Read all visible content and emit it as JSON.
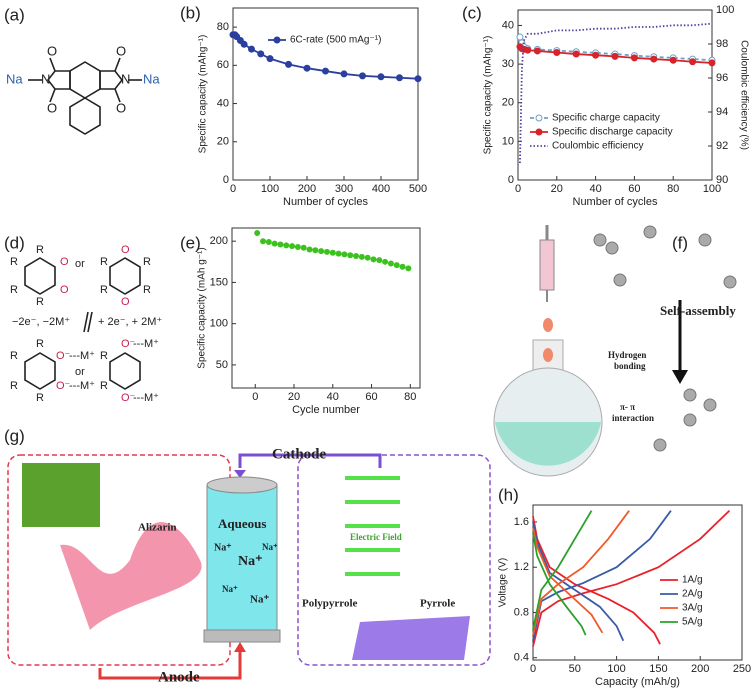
{
  "panels": [
    "(a)",
    "(b)",
    "(c)",
    "(d)",
    "(e)",
    "(f)",
    "(g)",
    "(h)"
  ],
  "panel_a": {
    "oxygen": "O",
    "nitrogen": "N",
    "sodium": "Na"
  },
  "panel_d": {
    "r": "R",
    "or": "or",
    "forward": "−2e⁻, −2M⁺",
    "backward": "+ 2e⁻, + 2M⁺",
    "o_minus": "O⁻",
    "m_plus": "---M⁺",
    "oxygen": "O"
  },
  "panel_f": {
    "arrow_label": "Self-assembly",
    "hydrogen_1": "Hydrogen",
    "hydrogen_2": "bonding",
    "pi_1": "π- π",
    "pi_2": "interaction"
  },
  "panel_g": {
    "cathode": "Cathode",
    "anode": "Anode",
    "alizarin": "Alizarin",
    "aqueous": "Aqueous",
    "na": "Na⁺",
    "electric_field": "Electric Field",
    "polypyrrole": "Polypyrrole",
    "pyrrole": "Pyrrole"
  },
  "chart_data": [
    {
      "type": "line",
      "xlabel": "Number of cycles",
      "ylabel": "Specific capacity (mAhg⁻¹)",
      "xlim": [
        0,
        500
      ],
      "xticks": [
        0,
        100,
        200,
        300,
        400,
        500
      ],
      "ylim": [
        0,
        90
      ],
      "yticks": [
        0,
        20,
        40,
        60,
        80
      ],
      "series": [
        {
          "name": "6C-rate (500 mAg⁻¹)",
          "color": "#2b3f9e",
          "linestyle": "solid",
          "marker": "circle",
          "x": [
            0,
            5,
            10,
            20,
            30,
            50,
            75,
            100,
            150,
            200,
            250,
            300,
            350,
            400,
            450,
            500
          ],
          "values": [
            76,
            76,
            75,
            73,
            71,
            68.5,
            66,
            63.5,
            60.5,
            58.5,
            57,
            55.5,
            54.5,
            54,
            53.5,
            53
          ]
        }
      ]
    },
    {
      "type": "line",
      "xlabel": "Number of cycles",
      "ylabel": "Specific capacity (mAhg⁻¹)",
      "y2label": "Coulombic efficiency (%)",
      "xlim": [
        0,
        100
      ],
      "xticks": [
        0,
        20,
        40,
        60,
        80,
        100
      ],
      "ylim": [
        0,
        44
      ],
      "yticks": [
        0,
        10,
        20,
        30,
        40
      ],
      "y2lim": [
        90,
        100
      ],
      "y2ticks": [
        90,
        92,
        94,
        96,
        98,
        100
      ],
      "series": [
        {
          "name": "Specific charge capacity",
          "color": "#6a9fc9",
          "linestyle": "dashed",
          "marker": "open-circle",
          "x": [
            1,
            2,
            3,
            5,
            10,
            20,
            30,
            40,
            50,
            60,
            70,
            80,
            90,
            100
          ],
          "values": [
            37,
            35.5,
            34.5,
            34,
            33.8,
            33.5,
            33.2,
            32.9,
            32.6,
            32.2,
            31.9,
            31.6,
            31.3,
            31
          ]
        },
        {
          "name": "Specific discharge capacity",
          "color": "#d8232a",
          "linestyle": "solid",
          "marker": "circle",
          "x": [
            1,
            2,
            3,
            5,
            10,
            20,
            30,
            40,
            50,
            60,
            70,
            80,
            90,
            100
          ],
          "values": [
            34.5,
            34,
            33.8,
            33.6,
            33.4,
            33,
            32.6,
            32.3,
            32,
            31.6,
            31.3,
            31,
            30.6,
            30.3
          ]
        },
        {
          "name": "Coulombic efficiency",
          "color": "#5a3fa0",
          "linestyle": "dotted",
          "marker": "none",
          "axis": "y2",
          "x": [
            1,
            2,
            3,
            5,
            10,
            20,
            30,
            40,
            50,
            60,
            70,
            80,
            90,
            100
          ],
          "values": [
            91,
            96.5,
            98.2,
            98.6,
            98.6,
            98.8,
            98.8,
            98.9,
            98.9,
            99,
            99,
            99.1,
            99.1,
            99.2
          ]
        }
      ]
    },
    {
      "type": "scatter",
      "xlabel": "Cycle number",
      "ylabel": "Specific capacity (mAh g⁻¹)",
      "xlim": [
        -12,
        85
      ],
      "xticks": [
        0,
        20,
        40,
        60,
        80
      ],
      "ylim": [
        22,
        216
      ],
      "yticks": [
        50,
        100,
        150,
        200
      ],
      "color": "#3cc21e",
      "x": [
        1,
        4,
        7,
        10,
        13,
        16,
        19,
        22,
        25,
        28,
        31,
        34,
        37,
        40,
        43,
        46,
        49,
        52,
        55,
        58,
        61,
        64,
        67,
        70,
        73,
        76,
        79
      ],
      "values": [
        210,
        200,
        199,
        197,
        196,
        195,
        194,
        193,
        192,
        190,
        189,
        188,
        187,
        186,
        185,
        184,
        183,
        182,
        181,
        180,
        178,
        177,
        175,
        173,
        171,
        169,
        167
      ]
    },
    {
      "type": "line",
      "xlabel": "Capacity (mAh/g)",
      "ylabel": "Voltage (V)",
      "xlim": [
        0,
        250
      ],
      "xticks": [
        0,
        50,
        100,
        150,
        200,
        250
      ],
      "ylim": [
        0.38,
        1.75
      ],
      "yticks": [
        0.4,
        0.8,
        1.2,
        1.6
      ],
      "series": [
        {
          "name": "1A/g",
          "color": "#e8212a",
          "linestyle": "solid",
          "marker": "none",
          "charge": {
            "x": [
              0,
              10,
              30,
              60,
              100,
              150,
              200,
              235
            ],
            "values": [
              0.5,
              0.8,
              0.9,
              0.97,
              1.05,
              1.2,
              1.45,
              1.7
            ]
          },
          "discharge": {
            "x": [
              0,
              5,
              20,
              50,
              90,
              120,
              145,
              152
            ],
            "values": [
              1.65,
              1.45,
              1.2,
              1.05,
              0.92,
              0.8,
              0.62,
              0.52
            ]
          }
        },
        {
          "name": "2A/g",
          "color": "#3a5ba8",
          "linestyle": "solid",
          "marker": "none",
          "charge": {
            "x": [
              0,
              10,
              30,
              60,
              100,
              140,
              165
            ],
            "values": [
              0.55,
              0.9,
              0.98,
              1.06,
              1.2,
              1.45,
              1.7
            ]
          },
          "discharge": {
            "x": [
              0,
              5,
              20,
              50,
              80,
              100,
              108
            ],
            "values": [
              1.6,
              1.42,
              1.15,
              1.0,
              0.85,
              0.68,
              0.55
            ]
          }
        },
        {
          "name": "3A/g",
          "color": "#f05a28",
          "linestyle": "solid",
          "marker": "none",
          "charge": {
            "x": [
              0,
              10,
              30,
              60,
              90,
              115
            ],
            "values": [
              0.6,
              0.92,
              1.05,
              1.2,
              1.45,
              1.7
            ]
          },
          "discharge": {
            "x": [
              0,
              5,
              20,
              45,
              70,
              83
            ],
            "values": [
              1.55,
              1.38,
              1.12,
              0.95,
              0.78,
              0.62
            ]
          }
        },
        {
          "name": "5A/g",
          "color": "#2ca02c",
          "linestyle": "solid",
          "marker": "none",
          "charge": {
            "x": [
              0,
              10,
              30,
              50,
              70
            ],
            "values": [
              0.65,
              1.0,
              1.2,
              1.45,
              1.7
            ]
          },
          "discharge": {
            "x": [
              0,
              5,
              20,
              40,
              58,
              63
            ],
            "values": [
              1.5,
              1.3,
              1.05,
              0.85,
              0.68,
              0.6
            ]
          }
        }
      ]
    }
  ]
}
